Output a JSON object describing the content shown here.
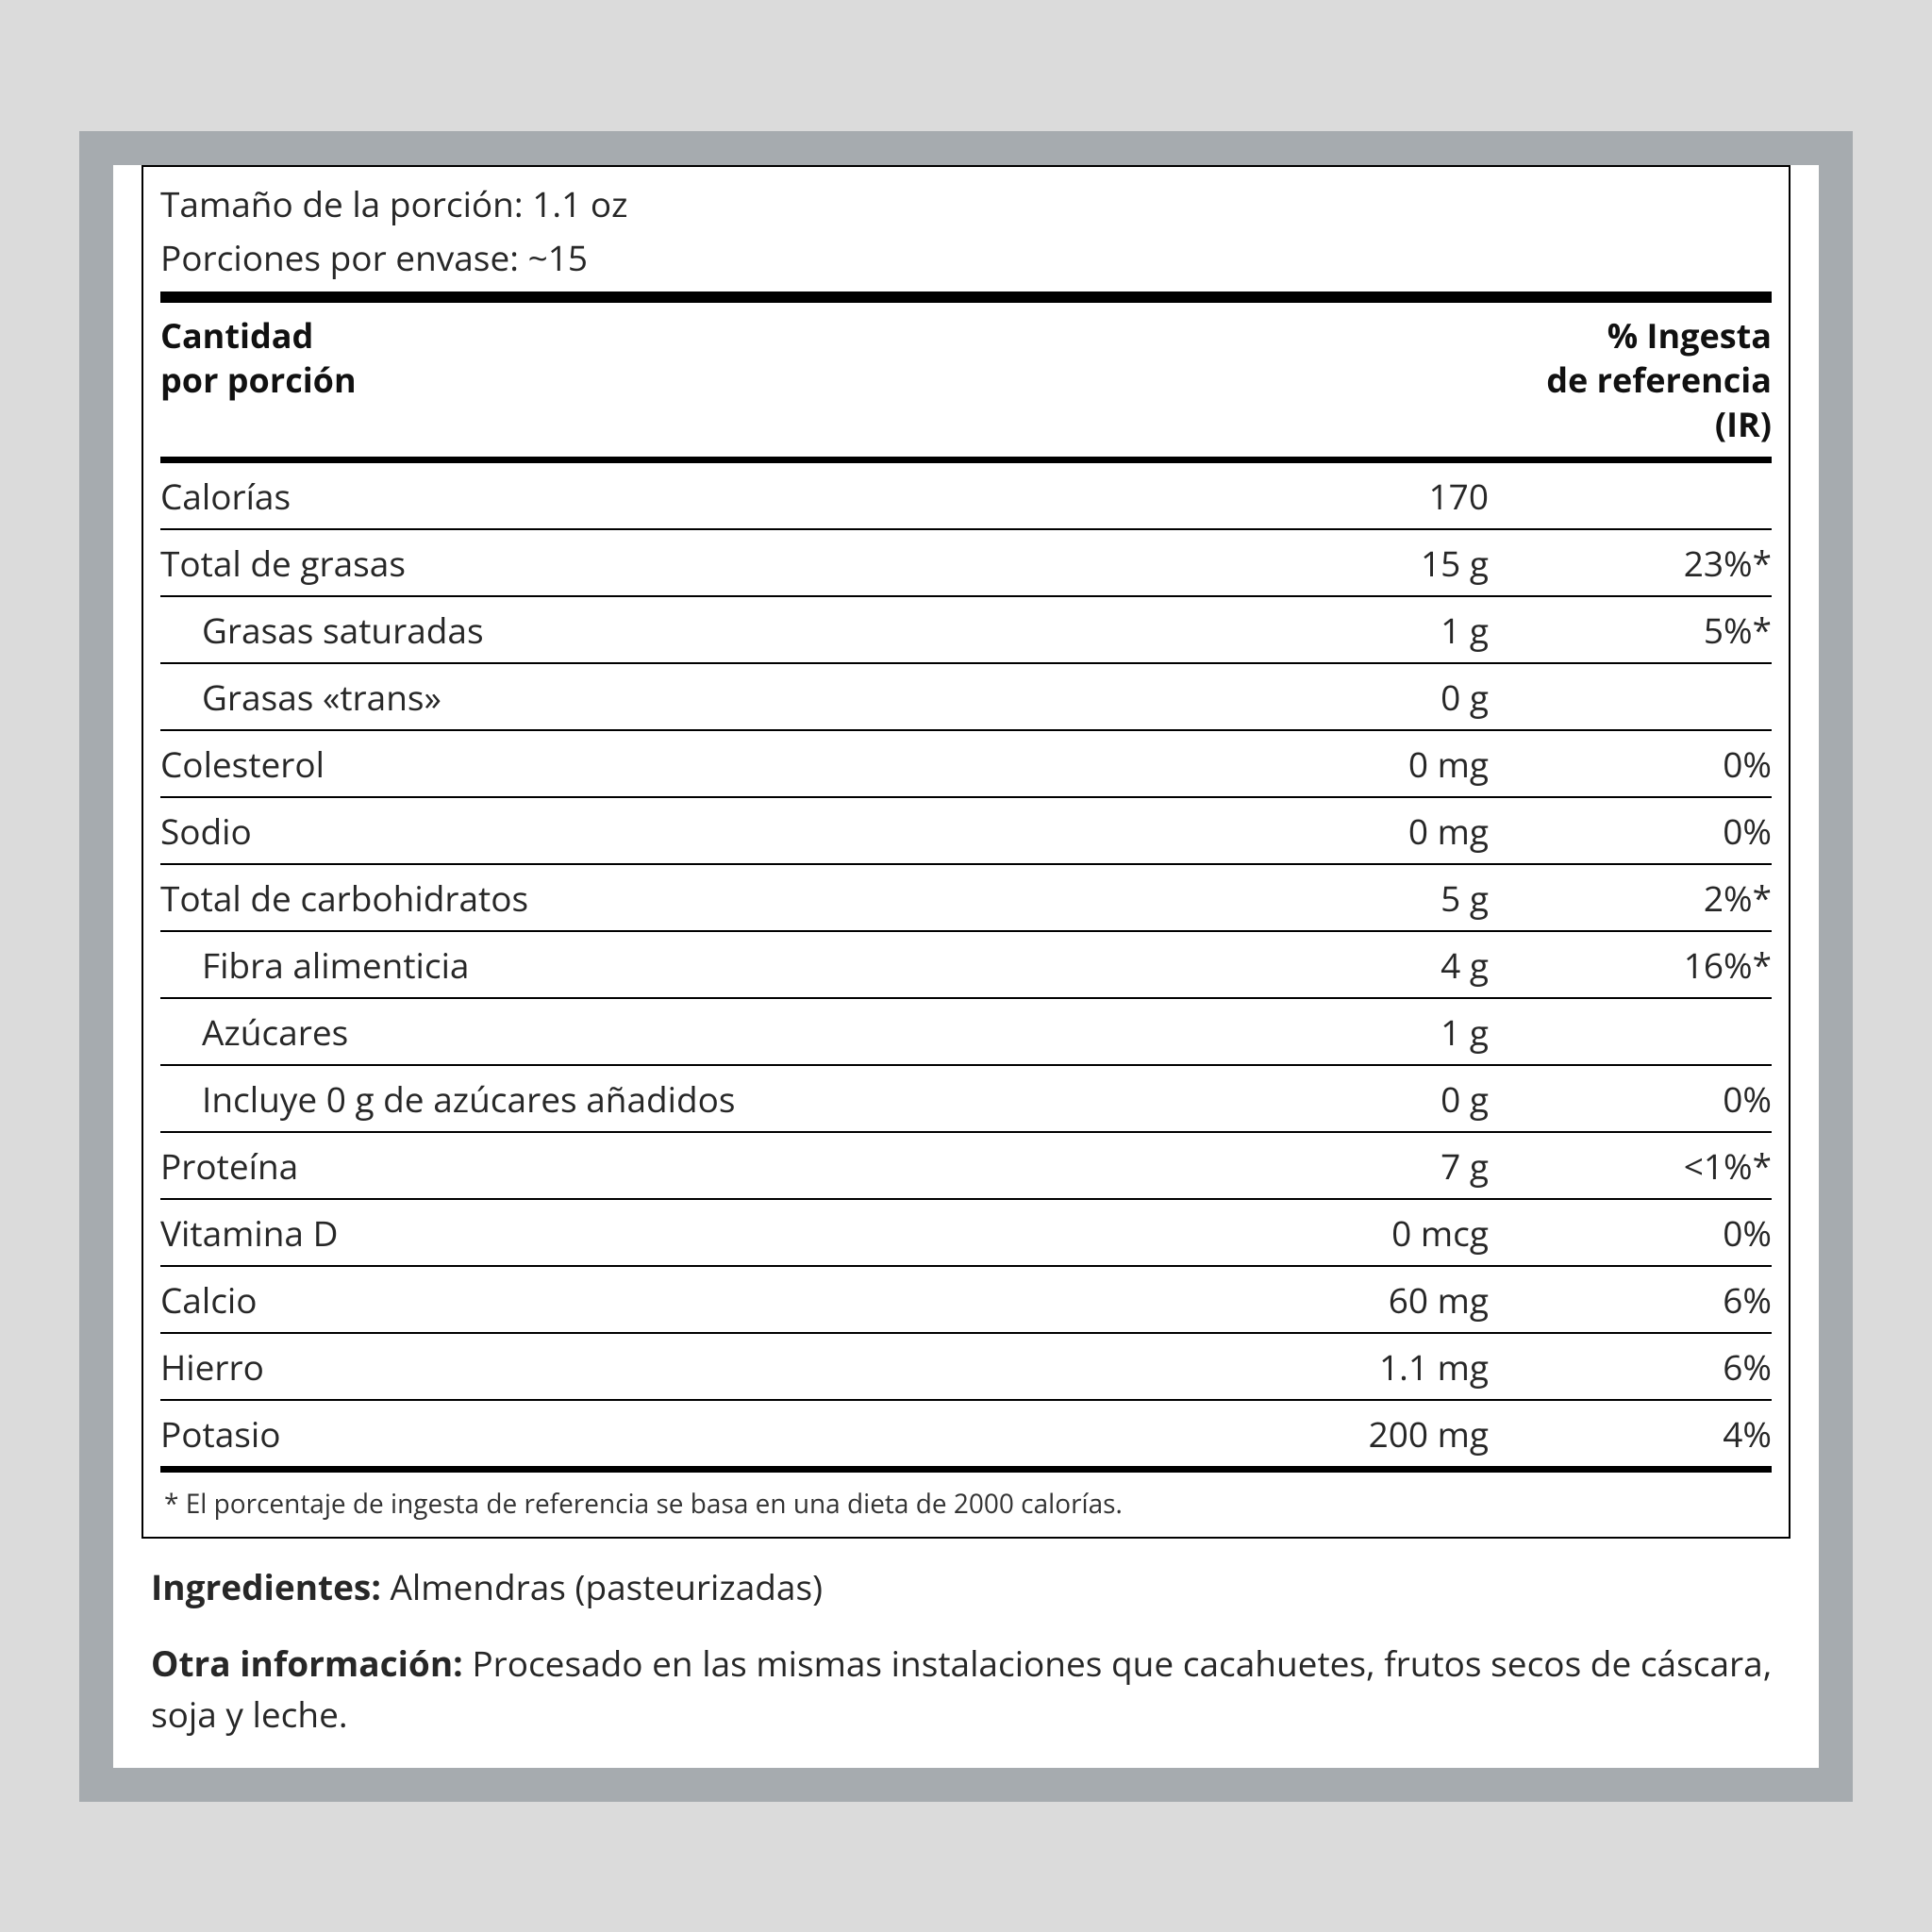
{
  "serving_size_label": "Tamaño de la porción:",
  "serving_size_value": "1.1 oz",
  "servings_per_label": "Porciones por envase:",
  "servings_per_value": "~15",
  "header_amount": "Cantidad\npor porción",
  "header_dv": "% Ingesta\nde referencia\n(IR)",
  "rows": [
    {
      "name": "Calorías",
      "amount": "170",
      "dv": "",
      "indent": false
    },
    {
      "name": "Total de grasas",
      "amount": "15 g",
      "dv": "23%*",
      "indent": false
    },
    {
      "name": "Grasas saturadas",
      "amount": "1 g",
      "dv": "5%*",
      "indent": true
    },
    {
      "name": "Grasas «trans»",
      "amount": "0 g",
      "dv": "",
      "indent": true
    },
    {
      "name": "Colesterol",
      "amount": "0 mg",
      "dv": "0%",
      "indent": false
    },
    {
      "name": "Sodio",
      "amount": "0 mg",
      "dv": "0%",
      "indent": false
    },
    {
      "name": "Total de carbohidratos",
      "amount": "5 g",
      "dv": "2%*",
      "indent": false
    },
    {
      "name": "Fibra alimenticia",
      "amount": "4 g",
      "dv": "16%*",
      "indent": true
    },
    {
      "name": "Azúcares",
      "amount": "1 g",
      "dv": "",
      "indent": true
    },
    {
      "name": "Incluye 0 g de azúcares añadidos",
      "amount": "0 g",
      "dv": "0%",
      "indent": true
    },
    {
      "name": "Proteína",
      "amount": "7 g",
      "dv": "<1%*",
      "indent": false
    },
    {
      "name": "Vitamina D",
      "amount": "0 mcg",
      "dv": "0%",
      "indent": false
    },
    {
      "name": "Calcio",
      "amount": "60 mg",
      "dv": "6%",
      "indent": false
    },
    {
      "name": "Hierro",
      "amount": "1.1 mg",
      "dv": "6%",
      "indent": false
    },
    {
      "name": "Potasio",
      "amount": "200 mg",
      "dv": "4%",
      "indent": false
    }
  ],
  "footnote": "* El porcentaje de ingesta de referencia se basa en una dieta de 2000 calorías.",
  "ingredients_label": "Ingredientes:",
  "ingredients_text": "Almendras (pasteurizadas)",
  "other_label": "Otra información:",
  "other_text": "Procesado en las mismas instalaciones que cacahuetes, frutos secos de cáscara, soja y leche.",
  "colors": {
    "page_bg": "#dbdbdb",
    "outer_bg": "#a6abaf",
    "panel_bg": "#ffffff",
    "rule": "#000000",
    "text": "#272727"
  }
}
